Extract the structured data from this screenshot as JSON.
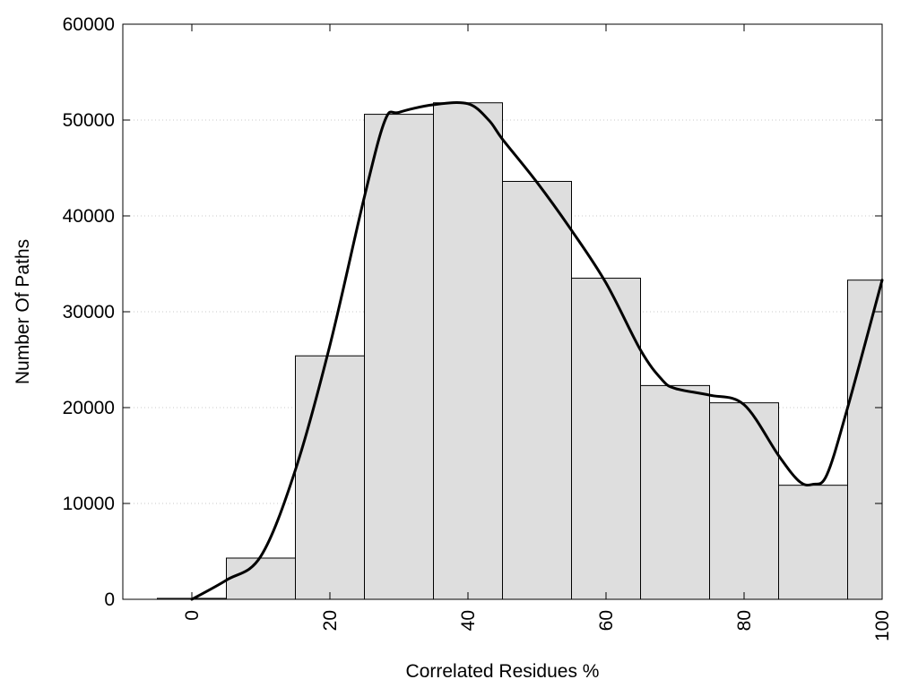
{
  "chart_data": {
    "type": "bar",
    "title": "",
    "xlabel": "Correlated Residues %",
    "ylabel": "Number Of Paths",
    "xlim": [
      -10,
      100
    ],
    "ylim": [
      0,
      60000
    ],
    "x_ticks": [
      0,
      20,
      40,
      60,
      80,
      100
    ],
    "y_ticks": [
      0,
      10000,
      20000,
      30000,
      40000,
      50000,
      60000
    ],
    "grid": "horizontal dotted",
    "bins": [
      {
        "center": 0,
        "value": 100
      },
      {
        "center": 10,
        "value": 4300
      },
      {
        "center": 20,
        "value": 25400
      },
      {
        "center": 30,
        "value": 50600
      },
      {
        "center": 40,
        "value": 51800
      },
      {
        "center": 50,
        "value": 43600
      },
      {
        "center": 60,
        "value": 33500
      },
      {
        "center": 70,
        "value": 22300
      },
      {
        "center": 80,
        "value": 20500
      },
      {
        "center": 90,
        "value": 11900
      },
      {
        "center": 100,
        "value": 33300
      }
    ],
    "bin_width": 10,
    "bar_color": "#dedede",
    "curve": {
      "x": [
        0,
        5,
        10,
        15,
        20,
        25,
        28,
        30,
        35,
        40,
        43,
        45,
        50,
        55,
        60,
        65,
        68,
        70,
        75,
        80,
        85,
        88,
        90,
        92,
        95,
        100
      ],
      "y": [
        0,
        2000,
        4500,
        13500,
        26500,
        42000,
        50000,
        50800,
        51600,
        51700,
        50000,
        48000,
        43500,
        38500,
        33000,
        26000,
        23000,
        22000,
        21300,
        20300,
        15000,
        12300,
        12000,
        13000,
        20000,
        33300
      ]
    },
    "curve_color": "#000000"
  }
}
